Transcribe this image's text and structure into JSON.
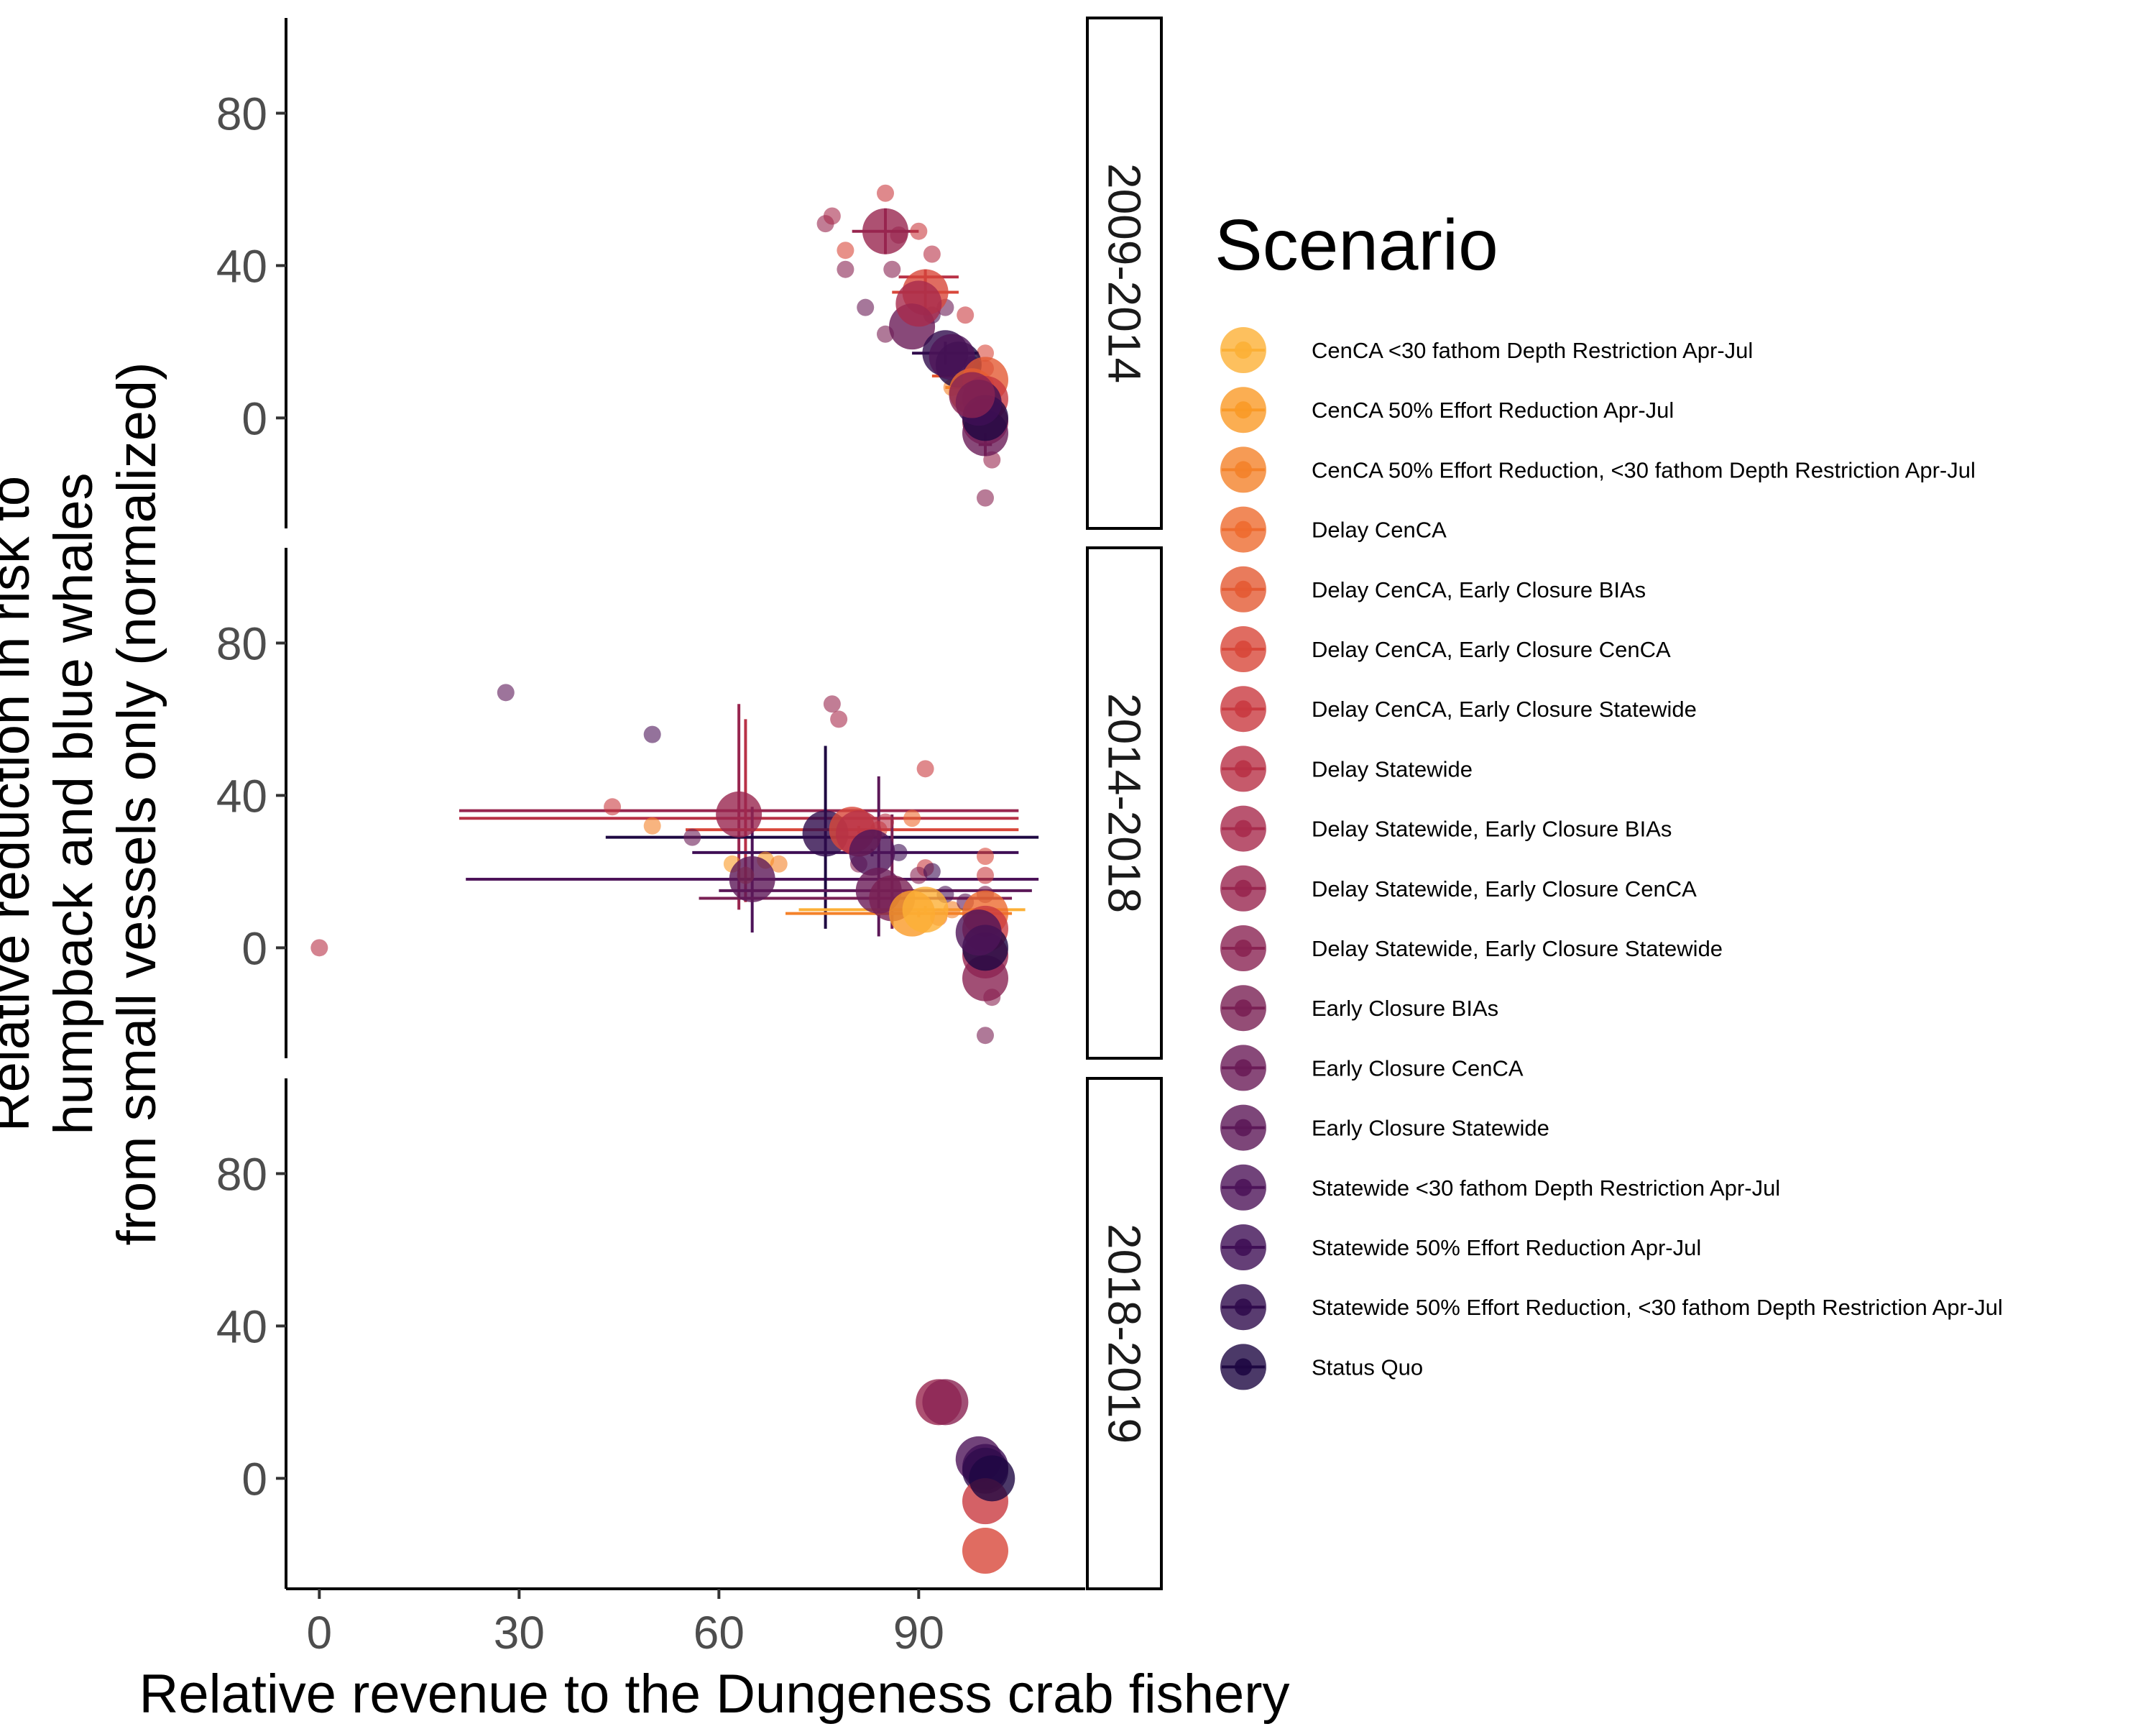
{
  "chart_data": {
    "type": "scatter",
    "title": "",
    "xlabel": "Relative revenue to the Dungeness crab fishery",
    "ylabel_lines": [
      "Relative reduction in risk to",
      "humpback and blue whales",
      "from small vessels only (normalized)"
    ],
    "xlim": [
      -5,
      115
    ],
    "ylim": [
      -29,
      105
    ],
    "x_ticks": [
      0,
      30,
      60,
      90
    ],
    "y_ticks": [
      0,
      40,
      80
    ],
    "grid": false,
    "legend_position": "right",
    "legend_title": "Scenario",
    "scenarios": [
      {
        "name": "CenCA <30 fathom Depth Restriction Apr-Jul",
        "color": "#fcb036"
      },
      {
        "name": "CenCA 50% Effort Reduction Apr-Jul",
        "color": "#fa9a27"
      },
      {
        "name": "CenCA 50% Effort Reduction, <30 fathom Depth Restriction Apr-Jul",
        "color": "#f4822a"
      },
      {
        "name": "Delay CenCA",
        "color": "#ee6b2f"
      },
      {
        "name": "Delay CenCA, Early Closure BIAs",
        "color": "#e45a33"
      },
      {
        "name": "Delay CenCA, Early Closure CenCA",
        "color": "#d8473a"
      },
      {
        "name": "Delay CenCA, Early Closure Statewide",
        "color": "#c93a40"
      },
      {
        "name": "Delay Statewide",
        "color": "#b83146"
      },
      {
        "name": "Delay Statewide, Early Closure BIAs",
        "color": "#a82b4c"
      },
      {
        "name": "Delay Statewide, Early Closure CenCA",
        "color": "#98264f"
      },
      {
        "name": "Delay Statewide, Early Closure Statewide",
        "color": "#892352"
      },
      {
        "name": "Early Closure BIAs",
        "color": "#792054"
      },
      {
        "name": "Early Closure CenCA",
        "color": "#6a1c57"
      },
      {
        "name": "Early Closure Statewide",
        "color": "#5c1858"
      },
      {
        "name": "Statewide <30 fathom Depth Restriction Apr-Jul",
        "color": "#4d1459"
      },
      {
        "name": "Statewide 50% Effort Reduction Apr-Jul",
        "color": "#3f0f55"
      },
      {
        "name": "Statewide 50% Effort Reduction, <30 fathom Depth Restriction Apr-Jul",
        "color": "#300b4c"
      },
      {
        "name": "Status Quo",
        "color": "#1e0842"
      }
    ],
    "panels": [
      {
        "label": "2009-2014",
        "big": [
          [
            85,
            49,
            9,
            0
          ],
          [
            91,
            33,
            5,
            0
          ],
          [
            89,
            24,
            12,
            0
          ],
          [
            90,
            30,
            8,
            0
          ],
          [
            94,
            17,
            16,
            0
          ],
          [
            96,
            14,
            17,
            0
          ],
          [
            95,
            16,
            14,
            0
          ],
          [
            98,
            7,
            3,
            0
          ],
          [
            100,
            10,
            4,
            0
          ],
          [
            100,
            5,
            6,
            0
          ],
          [
            100,
            -1,
            9,
            0
          ],
          [
            100,
            -4,
            12,
            0
          ],
          [
            100,
            0,
            17,
            0
          ],
          [
            99,
            4,
            15,
            0
          ],
          [
            98,
            6,
            10,
            0
          ]
        ],
        "small": [
          [
            76,
            51,
            9
          ],
          [
            77,
            53,
            8
          ],
          [
            79,
            44,
            5
          ],
          [
            79,
            39,
            10
          ],
          [
            82,
            29,
            12
          ],
          [
            85,
            59,
            6
          ],
          [
            86,
            39,
            10
          ],
          [
            87,
            48,
            9
          ],
          [
            90,
            49,
            6
          ],
          [
            92,
            43,
            7
          ],
          [
            85,
            22,
            11
          ],
          [
            92,
            27,
            14
          ],
          [
            94,
            29,
            12
          ],
          [
            97,
            27,
            6
          ],
          [
            98,
            14,
            14
          ],
          [
            100,
            17,
            5
          ],
          [
            100,
            13,
            7
          ],
          [
            100,
            9,
            3
          ],
          [
            101,
            5,
            4
          ],
          [
            100,
            -21,
            10
          ],
          [
            95,
            8,
            2
          ],
          [
            98,
            2,
            7
          ],
          [
            101,
            -11,
            9
          ]
        ],
        "err": [
          [
            85,
            49,
            80,
            90,
            43,
            55,
            9
          ],
          [
            91,
            33,
            86,
            96,
            28,
            38,
            5
          ],
          [
            91,
            37,
            87,
            96,
            35,
            39,
            7
          ],
          [
            94,
            17,
            89,
            99,
            14,
            20,
            16
          ],
          [
            96,
            11,
            92,
            100,
            10,
            12,
            4
          ],
          [
            97,
            8,
            94,
            101,
            7,
            9,
            2
          ],
          [
            98,
            4,
            96,
            101,
            3,
            5,
            1
          ],
          [
            100,
            -7,
            99,
            101,
            -10,
            -4,
            10
          ]
        ]
      },
      {
        "label": "2014-2018",
        "big": [
          [
            63,
            35,
            9,
            0
          ],
          [
            65,
            18,
            13,
            0
          ],
          [
            76,
            30,
            16,
            0
          ],
          [
            80,
            31,
            5,
            0
          ],
          [
            81,
            30,
            7,
            0
          ],
          [
            83,
            25,
            14,
            0
          ],
          [
            84,
            15,
            12,
            0
          ],
          [
            86,
            13,
            11,
            0
          ],
          [
            89,
            9,
            1,
            0
          ],
          [
            91,
            10,
            0,
            0
          ],
          [
            100,
            9,
            3,
            0
          ],
          [
            100,
            5,
            6,
            0
          ],
          [
            100,
            -2,
            9,
            0
          ],
          [
            100,
            -8,
            10,
            0
          ],
          [
            100,
            0,
            17,
            0
          ],
          [
            99,
            4,
            14,
            0
          ]
        ],
        "small": [
          [
            0,
            0,
            7
          ],
          [
            28,
            67,
            13
          ],
          [
            50,
            56,
            14
          ],
          [
            44,
            37,
            6
          ],
          [
            50,
            32,
            2
          ],
          [
            56,
            29,
            12
          ],
          [
            62,
            22,
            1
          ],
          [
            64,
            19,
            3
          ],
          [
            67,
            23,
            1
          ],
          [
            69,
            22,
            2
          ],
          [
            77,
            64,
            9
          ],
          [
            78,
            60,
            8
          ],
          [
            81,
            22,
            10
          ],
          [
            84,
            31,
            5
          ],
          [
            85,
            33,
            7
          ],
          [
            87,
            25,
            15
          ],
          [
            89,
            34,
            3
          ],
          [
            91,
            47,
            6
          ],
          [
            91,
            21,
            6
          ],
          [
            90,
            19,
            10
          ],
          [
            92,
            20,
            15
          ],
          [
            94,
            14,
            14
          ],
          [
            95,
            10,
            2
          ],
          [
            97,
            12,
            13
          ],
          [
            100,
            24,
            5
          ],
          [
            100,
            19,
            6
          ],
          [
            100,
            14,
            11
          ],
          [
            101,
            -13,
            10
          ],
          [
            100,
            -23,
            11
          ],
          [
            93,
            8,
            3
          ]
        ],
        "err": [
          [
            63,
            36,
            21,
            105,
            10,
            64,
            9
          ],
          [
            64,
            34,
            21,
            105,
            12,
            60,
            7
          ],
          [
            65,
            18,
            22,
            108,
            4,
            37,
            14
          ],
          [
            76,
            29,
            43,
            108,
            5,
            53,
            17
          ],
          [
            81,
            31,
            55,
            105,
            30,
            32,
            5
          ],
          [
            83,
            25,
            56,
            105,
            24,
            26,
            15
          ],
          [
            84,
            15,
            60,
            107,
            3,
            45,
            13
          ],
          [
            86,
            13,
            57,
            104,
            5,
            35,
            11
          ],
          [
            90,
            9,
            70,
            104,
            8,
            10,
            2
          ],
          [
            91,
            10,
            72,
            106,
            9,
            11,
            0
          ]
        ]
      },
      {
        "label": "2018-2019",
        "big": [
          [
            93,
            20,
            9,
            0
          ],
          [
            94,
            20,
            10,
            0
          ],
          [
            99,
            5,
            14,
            0
          ],
          [
            100,
            3,
            15,
            0
          ],
          [
            100,
            2,
            16,
            0
          ],
          [
            100,
            -6,
            6,
            0
          ],
          [
            100,
            -19,
            5,
            0
          ],
          [
            101,
            0,
            17,
            0
          ]
        ],
        "small": [],
        "err": []
      }
    ]
  }
}
